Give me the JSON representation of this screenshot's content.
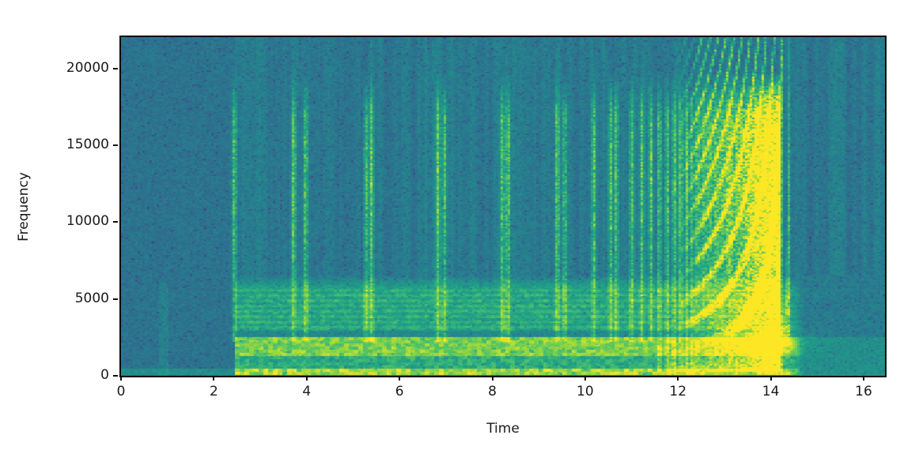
{
  "chart_data": {
    "type": "heatmap",
    "subtype": "audio-spectrogram",
    "title": "",
    "xlabel": "Time",
    "ylabel": "Frequency",
    "x_ticks": [
      0,
      2,
      4,
      6,
      8,
      10,
      12,
      14,
      16
    ],
    "y_ticks": [
      0,
      5000,
      10000,
      15000,
      20000
    ],
    "x_range": [
      0,
      16.46
    ],
    "y_range": [
      0,
      22050
    ],
    "grid": false,
    "legend": "none",
    "colormap": "viridis",
    "colormap_stops": [
      [
        0.0,
        "#440154"
      ],
      [
        0.14,
        "#46327e"
      ],
      [
        0.29,
        "#365c8d"
      ],
      [
        0.43,
        "#277f8e"
      ],
      [
        0.57,
        "#1fa187"
      ],
      [
        0.71,
        "#4ac16d"
      ],
      [
        0.86,
        "#a0da39"
      ],
      [
        1.0,
        "#fde725"
      ]
    ],
    "background_level": 0.41,
    "silence_level": 0.385,
    "onset_time": 2.44,
    "faint_pre_onset_streak": {
      "t_start": 0.82,
      "t_end": 1.02,
      "f_max": 6200
    },
    "bands_after_onset": [
      {
        "f_lo": 80,
        "f_hi": 550,
        "level": 0.86,
        "desc": "bright low band"
      },
      {
        "f_lo": 550,
        "f_hi": 1350,
        "level": 0.62,
        "desc": "green band"
      },
      {
        "f_lo": 1350,
        "f_hi": 2600,
        "level": 0.8,
        "desc": "bright ~2 kHz band"
      },
      {
        "f_lo": 2600,
        "f_hi": 3000,
        "level": 0.47,
        "desc": "dark notch"
      },
      {
        "f_lo": 3000,
        "f_hi": 5600,
        "level": 0.6,
        "desc": "mid band with harmonic striations"
      }
    ],
    "bounce_times": [
      2.44,
      3.72,
      3.98,
      5.28,
      5.4,
      6.83,
      6.97,
      8.22,
      8.34,
      9.4,
      9.56,
      10.19,
      10.55,
      10.67,
      11.0,
      11.22,
      11.42,
      11.6,
      11.77,
      11.92,
      12.06,
      12.19,
      12.31,
      12.42,
      12.53,
      12.63,
      12.72,
      12.81,
      12.89,
      12.97,
      13.05,
      13.12,
      13.19,
      13.26,
      13.32,
      13.38,
      13.44,
      13.49,
      13.54,
      13.59,
      13.64,
      13.68,
      13.72,
      13.76,
      13.8,
      13.84,
      13.87,
      13.9,
      13.93,
      13.96,
      13.99,
      14.02,
      14.05,
      14.08,
      14.11,
      14.14,
      14.16,
      14.18,
      14.2
    ],
    "impulse_freq_span": [
      2300,
      19800
    ],
    "chirp_family": {
      "t_start": 11.95,
      "t_singularity": 14.42,
      "f_min": 2300,
      "constant_hz_s": 3800,
      "desc": "rising hyperbolic arcs converging near t=14.3"
    },
    "end_blob": {
      "t": 13.9,
      "f": 2300,
      "sigma_t": 0.45,
      "sigma_f": 550
    },
    "fade_after": 14.38,
    "axis_color": "#0d0d0d",
    "tick_label_color": "#1a1a1a"
  }
}
